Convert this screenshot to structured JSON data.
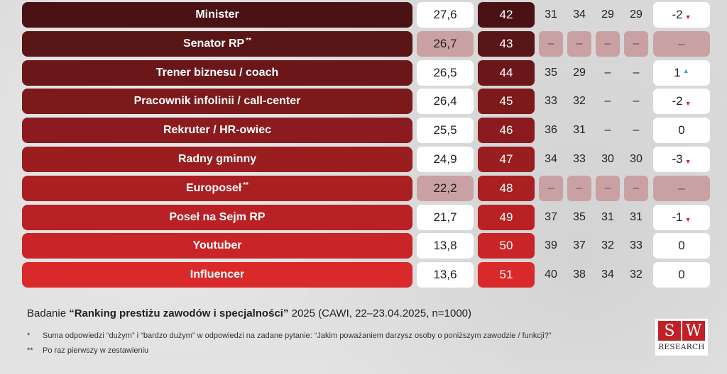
{
  "chart_data": {
    "type": "table",
    "columns": [
      "profession",
      "score_2025",
      "rank_2025",
      "hist_1",
      "hist_2",
      "hist_3",
      "hist_4",
      "change"
    ],
    "rows": [
      {
        "name": "Minister",
        "mark": "",
        "score": "27,6",
        "rank": "42",
        "hist": [
          "31",
          "34",
          "29",
          "29"
        ],
        "change": "-2",
        "dir": "down",
        "new": false
      },
      {
        "name": "Senator RP",
        "mark": "**",
        "score": "26,7",
        "rank": "43",
        "hist": [
          "–",
          "–",
          "–",
          "–"
        ],
        "change": "–",
        "dir": "",
        "new": true
      },
      {
        "name": "Trener biznesu / coach",
        "mark": "",
        "score": "26,5",
        "rank": "44",
        "hist": [
          "35",
          "29",
          "–",
          "–"
        ],
        "change": "1",
        "dir": "up",
        "new": false
      },
      {
        "name": "Pracownik infolinii / call-center",
        "mark": "",
        "score": "26,4",
        "rank": "45",
        "hist": [
          "33",
          "32",
          "–",
          "–"
        ],
        "change": "-2",
        "dir": "down",
        "new": false
      },
      {
        "name": "Rekruter / HR-owiec",
        "mark": "",
        "score": "25,5",
        "rank": "46",
        "hist": [
          "36",
          "31",
          "–",
          "–"
        ],
        "change": "0",
        "dir": "",
        "new": false
      },
      {
        "name": "Radny gminny",
        "mark": "",
        "score": "24,9",
        "rank": "47",
        "hist": [
          "34",
          "33",
          "30",
          "30"
        ],
        "change": "-3",
        "dir": "down",
        "new": false
      },
      {
        "name": "Europoseł",
        "mark": "**",
        "score": "22,2",
        "rank": "48",
        "hist": [
          "–",
          "–",
          "–",
          "–"
        ],
        "change": "–",
        "dir": "",
        "new": true
      },
      {
        "name": "Poseł na Sejm RP",
        "mark": "",
        "score": "21,7",
        "rank": "49",
        "hist": [
          "37",
          "35",
          "31",
          "31"
        ],
        "change": "-1",
        "dir": "down",
        "new": false
      },
      {
        "name": "Youtuber",
        "mark": "",
        "score": "13,8",
        "rank": "50",
        "hist": [
          "39",
          "37",
          "32",
          "33"
        ],
        "change": "0",
        "dir": "",
        "new": false
      },
      {
        "name": "Influencer",
        "mark": "",
        "score": "13,6",
        "rank": "51",
        "hist": [
          "40",
          "38",
          "34",
          "32"
        ],
        "change": "0",
        "dir": "",
        "new": false
      }
    ],
    "row_colors": [
      "#4a1214",
      "#5a1517",
      "#6b1719",
      "#7b191b",
      "#8b1b1e",
      "#9a1d20",
      "#a91f22",
      "#b92125",
      "#c92427",
      "#d9292b"
    ]
  },
  "footer": {
    "study_prefix": "Badanie ",
    "study_title": "“Ranking prestiżu zawodów i specjalności”",
    "study_suffix": " 2025 (CAWI, 22–23.04.2025, n=1000)",
    "note1_mark": "*",
    "note1_text": "Suma odpowiedzi “dużym” i “bardzo dużym” w odpowiedzi na zadane pytanie: “Jakim poważaniem darzysz osoby o poniższym zawodzie / funkcji?”",
    "note2_mark": "**",
    "note2_text": "Po raz pierwszy w zestawieniu"
  },
  "logo": {
    "letter1": "S",
    "letter2": "W",
    "text": "RESEARCH"
  }
}
